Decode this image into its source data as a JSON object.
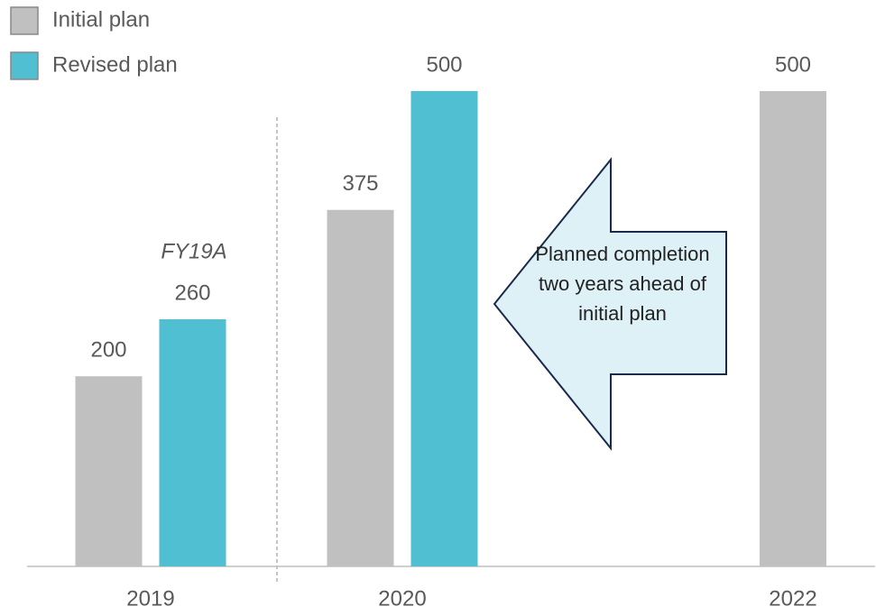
{
  "chart_data": {
    "type": "bar",
    "categories": [
      "2019",
      "2020",
      "2022"
    ],
    "series": [
      {
        "name": "Initial plan",
        "color": "#c0c0c0",
        "values": [
          200,
          375,
          500
        ]
      },
      {
        "name": "Revised plan",
        "color": "#4fbfd1",
        "values": [
          260,
          500,
          null
        ]
      }
    ],
    "ylim": [
      0,
      500
    ],
    "annotations": [
      "FY19A",
      "Planned completion two years ahead of initial plan"
    ]
  }
}
